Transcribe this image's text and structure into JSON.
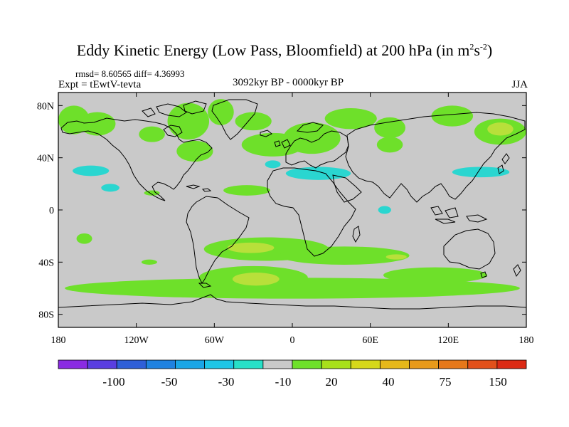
{
  "figure": {
    "title_main": "Eddy Kinetic Energy (Low Pass, Bloomfield) at 200 hPa (in m",
    "title_sup1": "2",
    "title_mid": "s",
    "title_sup2": "-2",
    "title_end": ")",
    "stats": "rmsd= 8.60565 diff= 4.36993",
    "experiment": "Expt = tEwtV-tevta",
    "period": "3092kyr BP - 0000kyr BP",
    "season": "JJA"
  },
  "axes": {
    "x_ticks": [
      {
        "value": -180,
        "label": "180"
      },
      {
        "value": -120,
        "label": "120W"
      },
      {
        "value": -60,
        "label": "60W"
      },
      {
        "value": 0,
        "label": "0"
      },
      {
        "value": 60,
        "label": "60E"
      },
      {
        "value": 120,
        "label": "120E"
      },
      {
        "value": 180,
        "label": "180"
      }
    ],
    "y_ticks": [
      {
        "value": 80,
        "label": "80N"
      },
      {
        "value": 40,
        "label": "40N"
      },
      {
        "value": 0,
        "label": "0"
      },
      {
        "value": -40,
        "label": "40S"
      },
      {
        "value": -80,
        "label": "80S"
      }
    ],
    "lon_range": [
      -180,
      180
    ],
    "lat_range": [
      -90,
      90
    ]
  },
  "colorbar": {
    "colors": [
      "#8a2be2",
      "#5a3ee0",
      "#2f5fd8",
      "#1f82e0",
      "#1aa6e6",
      "#1ec6e6",
      "#28e0c8",
      "#c9c9c9",
      "#6ee02a",
      "#a8e01a",
      "#d6d81a",
      "#e6b81a",
      "#e89a1a",
      "#e6781a",
      "#e2501a",
      "#dc2a14"
    ],
    "labels": [
      "-100",
      "-50",
      "-30",
      "-10",
      "20",
      "40",
      "75",
      "150"
    ]
  },
  "colors": {
    "background_field": "#c9c9c9",
    "positive_low": "#6ee02a",
    "positive_mid": "#b8e03a",
    "positive_high": "#d8dc40",
    "negative_low": "#2ad6d0"
  },
  "anomaly_regions": [
    {
      "type": "positive_low",
      "lon": -168,
      "lat": 69,
      "rlon": 12,
      "rlat": 11
    },
    {
      "type": "positive_low",
      "lon": -150,
      "lat": 66,
      "rlon": 14,
      "rlat": 9
    },
    {
      "type": "positive_low",
      "lon": -108,
      "lat": 58,
      "rlon": 10,
      "rlat": 6
    },
    {
      "type": "positive_low",
      "lon": -80,
      "lat": 68,
      "rlon": 16,
      "rlat": 14
    },
    {
      "type": "positive_low",
      "lon": -55,
      "lat": 75,
      "rlon": 10,
      "rlat": 10
    },
    {
      "type": "positive_low",
      "lon": -75,
      "lat": 45,
      "rlon": 14,
      "rlat": 8
    },
    {
      "type": "positive_low",
      "lon": -15,
      "lat": 50,
      "rlon": 24,
      "rlat": 9
    },
    {
      "type": "positive_low",
      "lon": -30,
      "lat": 68,
      "rlon": 14,
      "rlat": 7
    },
    {
      "type": "positive_low",
      "lon": 15,
      "lat": 55,
      "rlon": 22,
      "rlat": 12
    },
    {
      "type": "positive_low",
      "lon": 45,
      "lat": 70,
      "rlon": 20,
      "rlat": 8
    },
    {
      "type": "positive_low",
      "lon": 75,
      "lat": 63,
      "rlon": 12,
      "rlat": 8
    },
    {
      "type": "positive_low",
      "lon": 123,
      "lat": 72,
      "rlon": 16,
      "rlat": 8
    },
    {
      "type": "positive_low",
      "lon": 160,
      "lat": 60,
      "rlon": 20,
      "rlat": 10
    },
    {
      "type": "positive_mid",
      "lon": 160,
      "lat": 62,
      "rlon": 10,
      "rlat": 5
    },
    {
      "type": "positive_low",
      "lon": 75,
      "lat": 50,
      "rlon": 10,
      "rlat": 6
    },
    {
      "type": "positive_low",
      "lon": -35,
      "lat": 15,
      "rlon": 18,
      "rlat": 4
    },
    {
      "type": "positive_low",
      "lon": -108,
      "lat": 13,
      "rlon": 6,
      "rlat": 2
    },
    {
      "type": "negative_low",
      "lon": -155,
      "lat": 30,
      "rlon": 14,
      "rlat": 4
    },
    {
      "type": "negative_low",
      "lon": -140,
      "lat": 17,
      "rlon": 7,
      "rlat": 3
    },
    {
      "type": "negative_low",
      "lon": 20,
      "lat": 28,
      "rlon": 25,
      "rlat": 5
    },
    {
      "type": "negative_low",
      "lon": -15,
      "lat": 35,
      "rlon": 6,
      "rlat": 3
    },
    {
      "type": "negative_low",
      "lon": 71,
      "lat": 0,
      "rlon": 5,
      "rlat": 3
    },
    {
      "type": "negative_low",
      "lon": 145,
      "lat": 29,
      "rlon": 22,
      "rlat": 4
    },
    {
      "type": "positive_low",
      "lon": -160,
      "lat": -22,
      "rlon": 6,
      "rlat": 4
    },
    {
      "type": "positive_low",
      "lon": -110,
      "lat": -40,
      "rlon": 6,
      "rlat": 2
    },
    {
      "type": "positive_low",
      "lon": -20,
      "lat": -30,
      "rlon": 48,
      "rlat": 9
    },
    {
      "type": "positive_mid",
      "lon": -32,
      "lat": -29,
      "rlon": 18,
      "rlat": 4
    },
    {
      "type": "positive_low",
      "lon": 40,
      "lat": -35,
      "rlon": 50,
      "rlat": 7
    },
    {
      "type": "positive_mid",
      "lon": 80,
      "lat": -36,
      "rlon": 8,
      "rlat": 2
    },
    {
      "type": "positive_low",
      "lon": 0,
      "lat": -60,
      "rlon": 175,
      "rlat": 8
    },
    {
      "type": "positive_low",
      "lon": -30,
      "lat": -52,
      "rlon": 42,
      "rlat": 9
    },
    {
      "type": "positive_mid",
      "lon": -28,
      "lat": -53,
      "rlon": 18,
      "rlat": 5
    },
    {
      "type": "positive_low",
      "lon": 110,
      "lat": -50,
      "rlon": 40,
      "rlat": 6
    }
  ]
}
